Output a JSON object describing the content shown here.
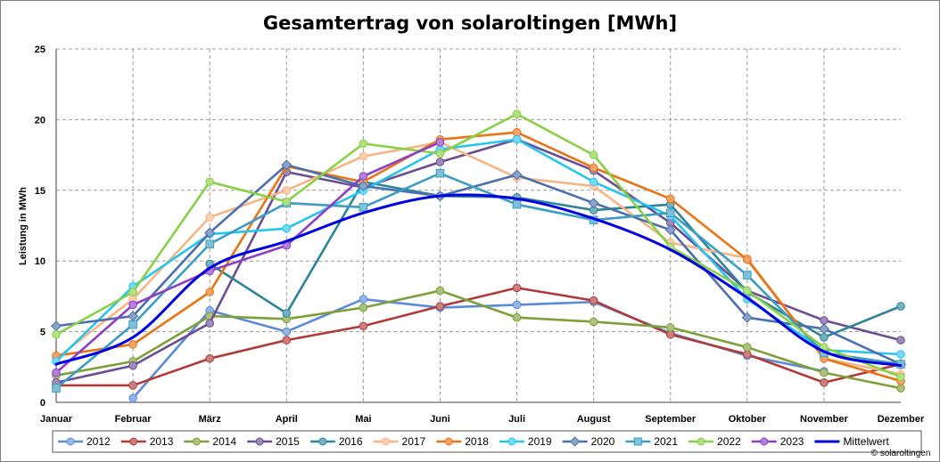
{
  "chart_data": {
    "type": "line",
    "title": "Gesamtertrag von solaroltingen [MWh]",
    "xlabel": "",
    "ylabel": "Leistung in MWh",
    "ylim": [
      0,
      25
    ],
    "yticks": [
      "0",
      "5",
      "10",
      "15",
      "20",
      "25"
    ],
    "categories": [
      "Januar",
      "Februar",
      "März",
      "April",
      "Mai",
      "Juni",
      "Juli",
      "August",
      "September",
      "Oktober",
      "November",
      "Dezember"
    ],
    "grid": true,
    "legend_position": "bottom",
    "credit": "© solaroltingen",
    "series": [
      {
        "name": "2012",
        "color": "#5b8bd8",
        "marker": "circle",
        "smooth": false,
        "values": [
          null,
          0.3,
          6.5,
          5.0,
          7.3,
          6.7,
          6.9,
          7.1,
          4.9,
          3.3,
          2.2,
          null
        ]
      },
      {
        "name": "2013",
        "color": "#b03a3a",
        "marker": "circle",
        "smooth": false,
        "values": [
          1.2,
          1.2,
          3.1,
          4.4,
          5.4,
          6.8,
          8.1,
          7.2,
          4.8,
          3.4,
          1.4,
          2.7
        ]
      },
      {
        "name": "2014",
        "color": "#7ea038",
        "marker": "circle",
        "smooth": false,
        "values": [
          1.9,
          2.9,
          6.1,
          5.9,
          6.7,
          7.9,
          6.0,
          5.7,
          5.3,
          3.9,
          2.1,
          1.0
        ]
      },
      {
        "name": "2015",
        "color": "#6b4d93",
        "marker": "circle",
        "smooth": false,
        "values": [
          1.4,
          2.6,
          5.6,
          16.3,
          15.2,
          17.0,
          18.6,
          16.4,
          12.7,
          7.9,
          5.8,
          4.4
        ]
      },
      {
        "name": "2016",
        "color": "#2c8598",
        "marker": "circle",
        "smooth": false,
        "values": [
          null,
          null,
          9.8,
          6.3,
          15.6,
          14.6,
          14.5,
          13.6,
          14.0,
          7.8,
          4.6,
          6.8
        ]
      },
      {
        "name": "2017",
        "color": "#f6b585",
        "marker": "circle",
        "smooth": false,
        "values": [
          3.1,
          7.3,
          13.1,
          15.0,
          17.4,
          18.4,
          15.9,
          15.3,
          11.3,
          10.2,
          3.1,
          2.0
        ]
      },
      {
        "name": "2018",
        "color": "#e87414",
        "marker": "circle",
        "smooth": false,
        "values": [
          3.3,
          4.1,
          7.8,
          16.7,
          15.6,
          18.6,
          19.1,
          16.6,
          14.4,
          10.1,
          3.1,
          1.5
        ]
      },
      {
        "name": "2019",
        "color": "#27c4f0",
        "marker": "circle",
        "smooth": false,
        "values": [
          2.9,
          8.2,
          11.9,
          12.3,
          15.0,
          17.9,
          18.6,
          15.6,
          13.2,
          7.3,
          3.7,
          3.4
        ]
      },
      {
        "name": "2020",
        "color": "#4c70ae",
        "marker": "diamond",
        "smooth": false,
        "values": [
          5.4,
          6.1,
          12.0,
          16.8,
          15.3,
          14.6,
          16.1,
          14.1,
          12.2,
          6.0,
          5.2,
          2.7
        ]
      },
      {
        "name": "2021",
        "color": "#3c9cc3",
        "marker": "square",
        "smooth": false,
        "values": [
          1.0,
          5.5,
          11.2,
          14.1,
          13.8,
          16.2,
          14.0,
          12.9,
          13.4,
          9.0,
          3.5,
          2.7
        ]
      },
      {
        "name": "2022",
        "color": "#88d045",
        "marker": "circle",
        "smooth": false,
        "values": [
          4.8,
          7.8,
          15.6,
          14.2,
          18.3,
          17.6,
          20.4,
          17.5,
          11.0,
          7.9,
          3.9,
          1.8
        ]
      },
      {
        "name": "2023",
        "color": "#8b3ec6",
        "marker": "circle",
        "smooth": false,
        "values": [
          2.1,
          6.9,
          9.3,
          11.1,
          16.0,
          18.4,
          null,
          null,
          null,
          null,
          null,
          null
        ]
      },
      {
        "name": "Mittelwert",
        "color": "#0000e0",
        "marker": "none",
        "smooth": true,
        "values": [
          2.7,
          4.6,
          9.5,
          11.4,
          13.4,
          14.6,
          14.4,
          13.0,
          10.8,
          7.4,
          3.6,
          2.6
        ]
      }
    ]
  }
}
